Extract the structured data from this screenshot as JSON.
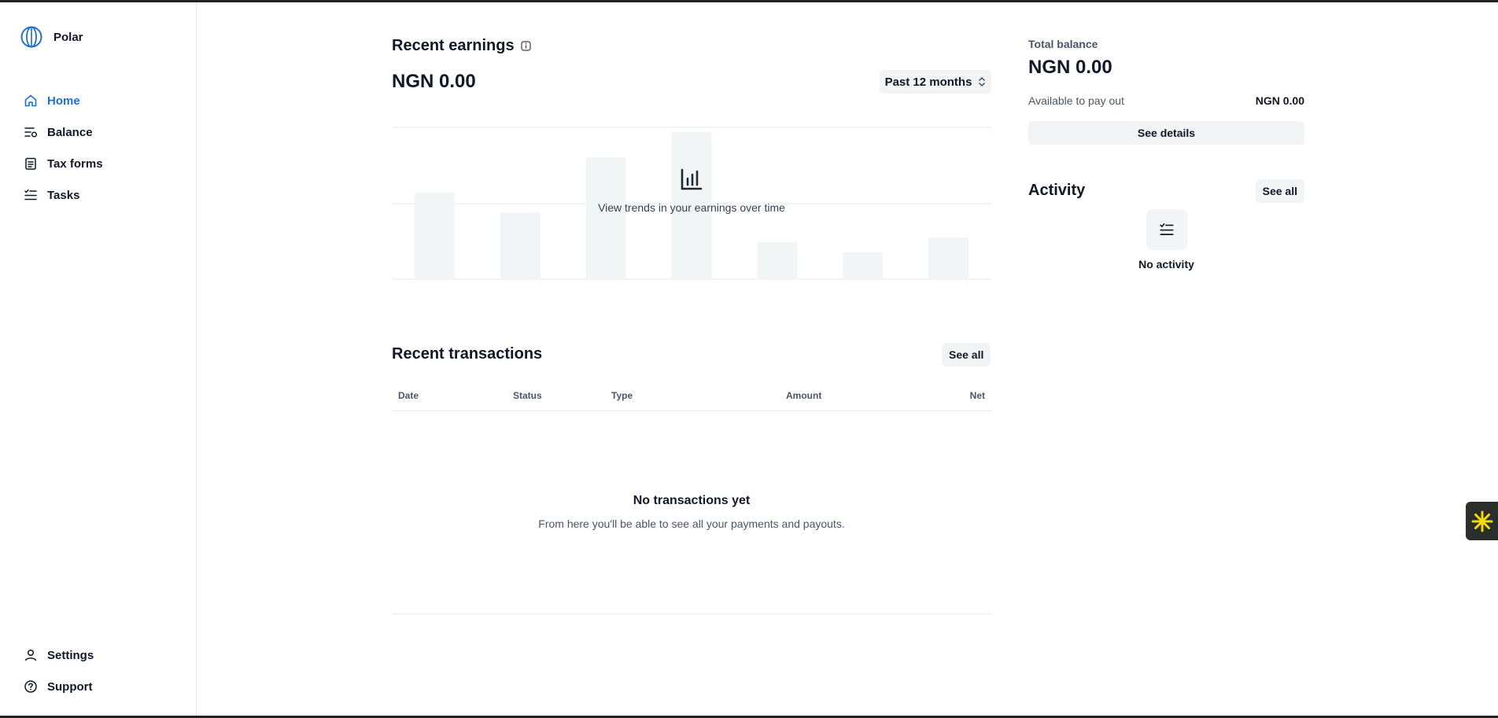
{
  "brand": {
    "name": "Polar"
  },
  "sidebar": {
    "items": [
      {
        "label": "Home",
        "icon": "home-icon",
        "active": true
      },
      {
        "label": "Balance",
        "icon": "balance-icon"
      },
      {
        "label": "Tax forms",
        "icon": "document-icon"
      },
      {
        "label": "Tasks",
        "icon": "tasks-icon"
      }
    ],
    "bottom": [
      {
        "label": "Settings",
        "icon": "user-icon"
      },
      {
        "label": "Support",
        "icon": "help-circle-icon"
      }
    ]
  },
  "earnings": {
    "title": "Recent earnings",
    "amount": "NGN 0.00",
    "period": "Past 12 months",
    "empty_message": "View trends in your earnings over time"
  },
  "chart_data": {
    "type": "bar",
    "placeholder": true,
    "values": [
      0.58,
      0.45,
      0.82,
      0.99,
      0.25,
      0.18,
      0.28
    ],
    "colors": {
      "bar": "#f1f5f5",
      "grid": "#e5e7eb"
    }
  },
  "transactions": {
    "title": "Recent transactions",
    "see_all": "See all",
    "columns": [
      "Date",
      "Status",
      "Type",
      "Amount",
      "Net"
    ],
    "empty_title": "No transactions yet",
    "empty_sub": "From here you'll be able to see all your payments and payouts."
  },
  "balance": {
    "label": "Total balance",
    "amount": "NGN 0.00",
    "available_label": "Available to pay out",
    "available_value": "NGN 0.00",
    "details_button": "See details"
  },
  "activity": {
    "title": "Activity",
    "see_all": "See all",
    "empty": "No activity"
  },
  "colors": {
    "accent": "#1d6fd1",
    "widget_bg": "#2b2f2b",
    "widget_icon": "#f5d90a"
  }
}
